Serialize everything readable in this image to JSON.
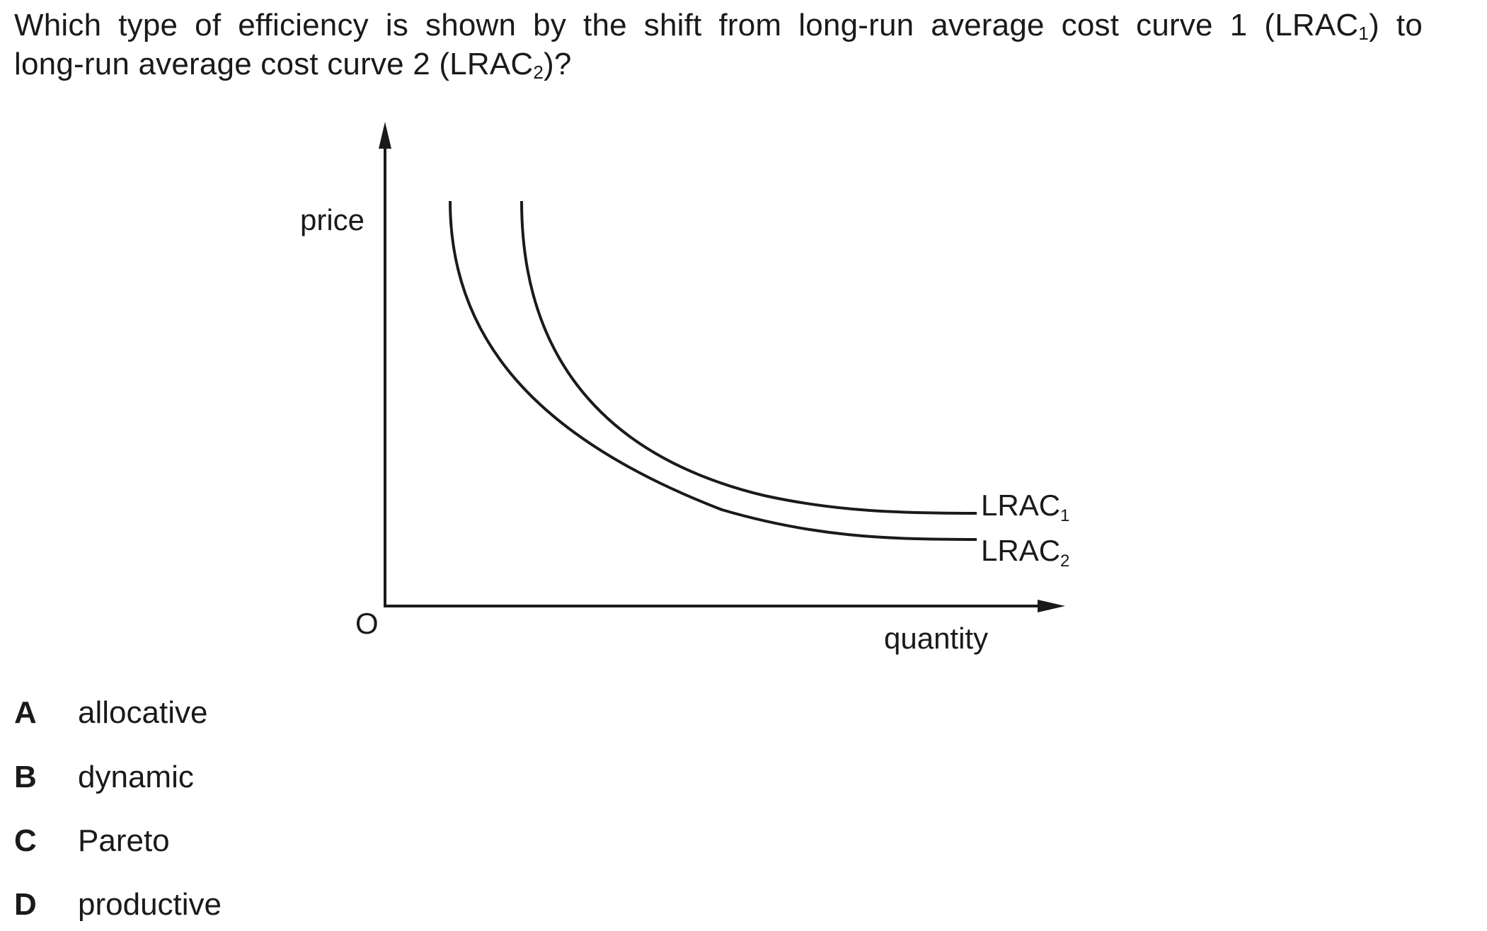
{
  "question": {
    "line1_pre": "Which type of efficiency is shown by the shift from long-run average cost curve 1 (LRAC",
    "line1_sub": "1",
    "line1_post": ") to",
    "line2_pre": "long-run average cost curve 2 (LRAC",
    "line2_sub": "2",
    "line2_post": ")?"
  },
  "diagram": {
    "y_axis_label": "price",
    "x_axis_label": "quantity",
    "origin_label": "O",
    "curve1_label_main": "LRAC",
    "curve1_label_sub": "1",
    "curve2_label_main": "LRAC",
    "curve2_label_sub": "2",
    "line_color": "#1a1a1a"
  },
  "options": [
    {
      "letter": "A",
      "text": "allocative"
    },
    {
      "letter": "B",
      "text": "dynamic"
    },
    {
      "letter": "C",
      "text": "Pareto"
    },
    {
      "letter": "D",
      "text": "productive"
    }
  ]
}
